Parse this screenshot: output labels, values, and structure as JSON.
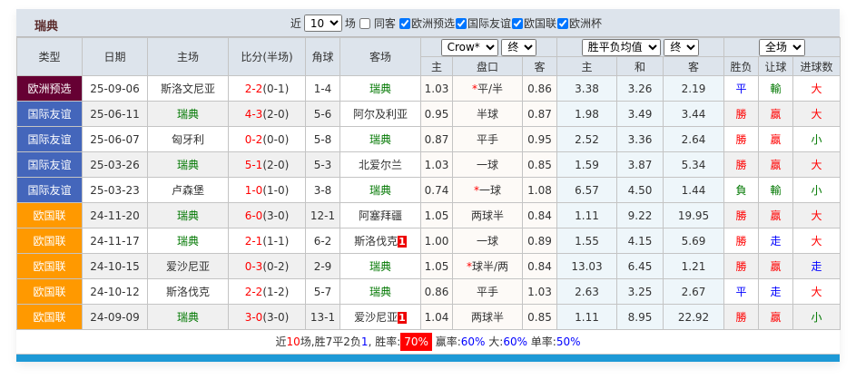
{
  "header": {
    "team": "瑞典",
    "recent_label": "近",
    "recent_value": "10",
    "games_label": "场",
    "same_label": "同客",
    "competitions": [
      {
        "label": "欧洲预选",
        "checked": true
      },
      {
        "label": "国际友谊",
        "checked": true
      },
      {
        "label": "欧国联",
        "checked": true
      },
      {
        "label": "欧洲杯",
        "checked": true
      }
    ]
  },
  "columns": {
    "type": "类型",
    "date": "日期",
    "home": "主场",
    "score": "比分(半场)",
    "corner": "角球",
    "away": "客场",
    "asian_company": "Crow*",
    "asian_stage": "终",
    "eu_company": "胜平负均值",
    "eu_stage": "终",
    "scope": "全场",
    "asian_sub": [
      "主",
      "盘口",
      "客"
    ],
    "eu_sub": [
      "主",
      "和",
      "客"
    ],
    "result_sub": [
      "胜负",
      "让球",
      "进球数"
    ]
  },
  "colors": {
    "欧洲预选": "#660033",
    "国际友谊": "#4466bb",
    "欧国联": "#ff9900"
  },
  "rows": [
    {
      "type": "欧洲预选",
      "date": "25-09-06",
      "home": "斯洛文尼亚",
      "score": "2-2",
      "half": "(0-1)",
      "corner": "1-4",
      "away": "瑞典",
      "ah": "1.03",
      "line": "平/半",
      "star": true,
      "aa": "0.86",
      "eh": "3.38",
      "ed": "3.26",
      "ea": "2.19",
      "wl": "平",
      "hc": "輸",
      "ou": "大"
    },
    {
      "type": "国际友谊",
      "date": "25-06-11",
      "home": "瑞典",
      "score": "4-3",
      "half": "(2-0)",
      "corner": "5-6",
      "away": "阿尔及利亚",
      "ah": "0.95",
      "line": "半球",
      "aa": "0.87",
      "eh": "1.98",
      "ed": "3.49",
      "ea": "3.44",
      "wl": "勝",
      "hc": "贏",
      "ou": "大"
    },
    {
      "type": "国际友谊",
      "date": "25-06-07",
      "home": "匈牙利",
      "score": "0-2",
      "half": "(0-0)",
      "corner": "5-8",
      "away": "瑞典",
      "ah": "0.87",
      "line": "平手",
      "aa": "0.95",
      "eh": "2.52",
      "ed": "3.36",
      "ea": "2.64",
      "wl": "勝",
      "hc": "贏",
      "ou": "小"
    },
    {
      "type": "国际友谊",
      "date": "25-03-26",
      "home": "瑞典",
      "score": "5-1",
      "half": "(2-0)",
      "corner": "5-3",
      "away": "北爱尔兰",
      "ah": "1.03",
      "line": "一球",
      "aa": "0.85",
      "eh": "1.59",
      "ed": "3.87",
      "ea": "5.34",
      "wl": "勝",
      "hc": "贏",
      "ou": "大"
    },
    {
      "type": "国际友谊",
      "date": "25-03-23",
      "home": "卢森堡",
      "score": "1-0",
      "half": "(1-0)",
      "corner": "3-8",
      "away": "瑞典",
      "ah": "0.74",
      "line": "一球",
      "star": true,
      "aa": "1.08",
      "eh": "6.57",
      "ed": "4.50",
      "ea": "1.44",
      "wl": "負",
      "hc": "輸",
      "ou": "小"
    },
    {
      "type": "欧国联",
      "date": "24-11-20",
      "home": "瑞典",
      "score": "6-0",
      "half": "(3-0)",
      "corner": "12-1",
      "away": "阿塞拜疆",
      "ah": "1.05",
      "line": "两球半",
      "aa": "0.84",
      "eh": "1.11",
      "ed": "9.22",
      "ea": "19.95",
      "wl": "勝",
      "hc": "贏",
      "ou": "大"
    },
    {
      "type": "欧国联",
      "date": "24-11-17",
      "home": "瑞典",
      "score": "2-1",
      "half": "(1-1)",
      "corner": "6-2",
      "away": "斯洛伐克",
      "red": "1",
      "ah": "1.00",
      "line": "一球",
      "aa": "0.89",
      "eh": "1.55",
      "ed": "4.15",
      "ea": "5.69",
      "wl": "勝",
      "hc": "走",
      "ou": "大"
    },
    {
      "type": "欧国联",
      "date": "24-10-15",
      "home": "爱沙尼亚",
      "score": "0-3",
      "half": "(0-2)",
      "corner": "2-9",
      "away": "瑞典",
      "ah": "1.05",
      "line": "球半/两",
      "star": true,
      "aa": "0.84",
      "eh": "13.03",
      "ed": "6.45",
      "ea": "1.21",
      "wl": "勝",
      "hc": "贏",
      "ou": "走"
    },
    {
      "type": "欧国联",
      "date": "24-10-12",
      "home": "斯洛伐克",
      "score": "2-2",
      "half": "(1-2)",
      "corner": "5-7",
      "away": "瑞典",
      "ah": "0.86",
      "line": "平手",
      "aa": "1.03",
      "eh": "2.63",
      "ed": "3.25",
      "ea": "2.67",
      "wl": "平",
      "hc": "走",
      "ou": "大"
    },
    {
      "type": "欧国联",
      "date": "24-09-09",
      "home": "瑞典",
      "score": "3-0",
      "half": "(3-0)",
      "corner": "13-1",
      "away": "爱沙尼亚",
      "red": "1",
      "ah": "1.04",
      "line": "两球半",
      "aa": "0.85",
      "eh": "1.11",
      "ed": "8.95",
      "ea": "22.92",
      "wl": "勝",
      "hc": "贏",
      "ou": "小"
    }
  ],
  "summary": {
    "p1": "近",
    "n": "10",
    "p2": "场,胜",
    "w": "7",
    "p3": "平",
    "d": "2",
    "p4": "负",
    "l": "1",
    "p5": ", 胜率:",
    "win_rate": "70%",
    "p6": " 赢率:",
    "hc_rate": "60%",
    "p7": " 大:",
    "big_rate": "60%",
    "p8": " 单率:",
    "odd_rate": "50%"
  }
}
